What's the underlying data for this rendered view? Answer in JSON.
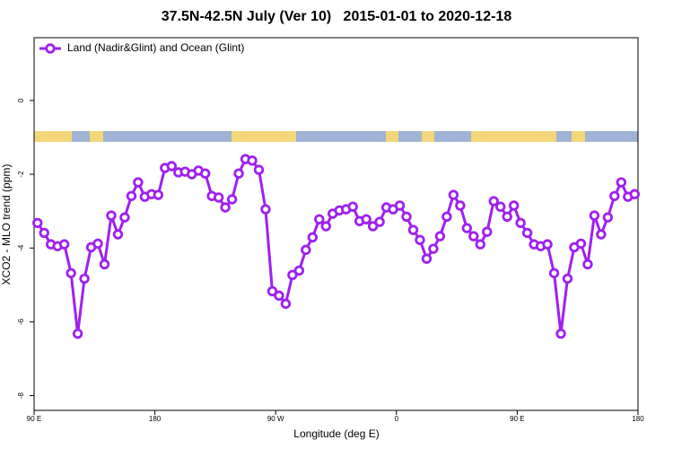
{
  "chart_data": {
    "type": "line",
    "title": "37.5N-42.5N July (Ver 10)   2015-01-01 to 2020-12-18",
    "x_label": "Longitude (deg E)",
    "y_label": "XCO2 - MLO trend (ppm)",
    "legend": "upper left",
    "x": [
      92.5,
      97.5,
      102.5,
      107.5,
      112.5,
      117.5,
      122.5,
      127.5,
      132.5,
      137.5,
      142.5,
      147.5,
      152.5,
      157.5,
      162.5,
      167.5,
      172.5,
      177.5,
      182.5,
      187.5,
      192.5,
      197.5,
      202.5,
      207.5,
      212.5,
      217.5,
      222.5,
      227.5,
      232.5,
      237.5,
      242.5,
      247.5,
      252.5,
      257.5,
      262.5,
      267.5,
      272.5,
      277.5,
      282.5,
      287.5,
      292.5,
      297.5,
      302.5,
      307.5,
      312.5,
      317.5,
      322.5,
      327.5,
      332.5,
      337.5,
      342.5,
      347.5,
      352.5,
      357.5,
      362.5,
      367.5,
      372.5,
      377.5,
      382.5,
      387.5,
      392.5,
      397.5,
      402.5,
      407.5,
      412.5,
      417.5,
      422.5,
      427.5,
      432.5,
      437.5,
      442.5,
      447.5,
      452.5,
      457.5,
      462.5,
      467.5,
      472.5,
      477.5,
      482.5,
      487.5,
      492.5,
      497.5,
      502.5,
      507.5,
      512.5,
      517.5,
      522.5,
      527.5,
      532.5,
      537.5
    ],
    "series": [
      {
        "name": "Land (Nadir&Glint) and Ocean (Glint)",
        "color": "#a020f0",
        "values": [
          -3.32,
          -3.59,
          -3.9,
          -3.95,
          -3.9,
          -4.68,
          -6.32,
          -4.83,
          -3.98,
          -3.88,
          -4.44,
          -3.12,
          -3.63,
          -3.17,
          -2.59,
          -2.22,
          -2.61,
          -2.54,
          -2.56,
          -1.83,
          -1.78,
          -1.95,
          -1.93,
          -2.0,
          -1.9,
          -1.98,
          -2.59,
          -2.63,
          -2.9,
          -2.68,
          -1.98,
          -1.59,
          -1.63,
          -1.88,
          -2.95,
          -5.17,
          -5.29,
          -5.51,
          -4.73,
          -4.61,
          -4.05,
          -3.71,
          -3.22,
          -3.41,
          -3.07,
          -2.98,
          -2.95,
          -2.88,
          -3.27,
          -3.22,
          -3.41,
          -3.29,
          -2.9,
          -2.95,
          -2.85,
          -3.15,
          -3.51,
          -3.78,
          -4.29,
          -4.02,
          -3.68,
          -3.15,
          -2.56,
          -2.85,
          -3.46,
          -3.68,
          -3.9,
          -3.56,
          -2.73,
          -2.88,
          -3.15,
          -2.85,
          -3.32,
          -3.59,
          -3.9,
          -3.95,
          -3.9,
          -4.68,
          -6.32,
          -4.83,
          -3.98,
          -3.88,
          -4.44,
          -3.12,
          -3.63,
          -3.17,
          -2.59,
          -2.22,
          -2.61,
          -2.54
        ]
      }
    ],
    "xlim": [
      90,
      540
    ],
    "xticks": [
      {
        "value": 90,
        "label": "90 E"
      },
      180,
      {
        "value": 270,
        "label": "90 W"
      },
      {
        "value": 360,
        "label": "0"
      },
      {
        "value": 450,
        "label": "90 E"
      },
      180
    ],
    "ylim": [
      -8.4,
      1.7
    ],
    "yticks": [
      0,
      -2,
      -4,
      -6,
      -8
    ]
  }
}
